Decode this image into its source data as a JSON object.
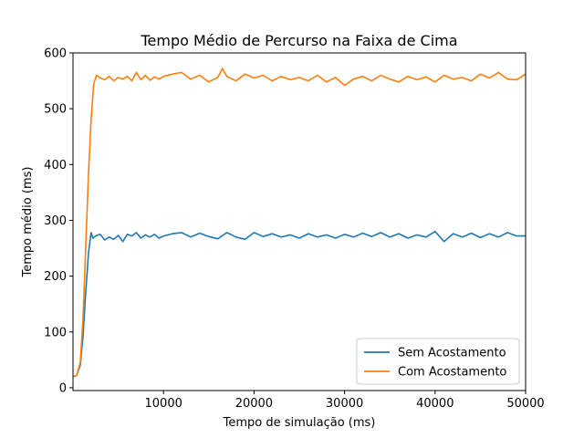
{
  "chart_data": {
    "type": "line",
    "title": "Tempo Médio de Percurso na Faixa de Cima",
    "xlabel": "Tempo de simulação (ms)",
    "ylabel": "Tempo médio (ms)",
    "xlim": [
      0,
      50000
    ],
    "ylim": [
      -5,
      600
    ],
    "xticks": [
      10000,
      20000,
      30000,
      40000,
      50000
    ],
    "yticks": [
      0,
      100,
      200,
      300,
      400,
      500,
      600
    ],
    "grid": false,
    "legend_position": "lower-right",
    "series": [
      {
        "name": "Sem Acostamento",
        "color": "#1f77b4",
        "x": [
          0,
          400,
          800,
          1100,
          1400,
          1700,
          2000,
          2200,
          2500,
          3000,
          3500,
          4000,
          4500,
          5000,
          5500,
          6000,
          6500,
          7000,
          7500,
          8000,
          8500,
          9000,
          9500,
          10000,
          11000,
          12000,
          13000,
          14000,
          15000,
          16000,
          17000,
          18000,
          19000,
          20000,
          21000,
          22000,
          23000,
          24000,
          25000,
          26000,
          27000,
          28000,
          29000,
          30000,
          31000,
          32000,
          33000,
          34000,
          35000,
          36000,
          37000,
          38000,
          39000,
          40000,
          41000,
          42000,
          43000,
          44000,
          45000,
          46000,
          47000,
          48000,
          49000,
          50000
        ],
        "values": [
          20,
          22,
          40,
          90,
          170,
          240,
          278,
          268,
          272,
          275,
          265,
          270,
          266,
          273,
          262,
          275,
          272,
          278,
          268,
          274,
          270,
          275,
          268,
          272,
          276,
          278,
          270,
          277,
          271,
          267,
          278,
          270,
          266,
          278,
          271,
          276,
          270,
          274,
          268,
          276,
          270,
          274,
          268,
          275,
          270,
          277,
          271,
          278,
          270,
          276,
          268,
          274,
          270,
          280,
          262,
          276,
          270,
          277,
          269,
          276,
          270,
          278,
          272,
          272
        ]
      },
      {
        "name": "Com Acostamento",
        "color": "#ff7f0e",
        "x": [
          0,
          400,
          800,
          1100,
          1400,
          1700,
          2000,
          2300,
          2600,
          3000,
          3500,
          4000,
          4500,
          5000,
          5500,
          6000,
          6500,
          7000,
          7500,
          8000,
          8500,
          9000,
          9500,
          10000,
          11000,
          12000,
          13000,
          14000,
          15000,
          16000,
          16500,
          17000,
          18000,
          19000,
          20000,
          21000,
          22000,
          23000,
          24000,
          25000,
          26000,
          27000,
          28000,
          29000,
          30000,
          31000,
          32000,
          33000,
          34000,
          35000,
          36000,
          37000,
          38000,
          39000,
          40000,
          41000,
          42000,
          43000,
          44000,
          45000,
          46000,
          47000,
          48000,
          49000,
          50000
        ],
        "values": [
          20,
          22,
          45,
          120,
          250,
          380,
          480,
          545,
          560,
          555,
          552,
          558,
          550,
          556,
          553,
          558,
          550,
          565,
          552,
          560,
          551,
          557,
          553,
          558,
          562,
          565,
          553,
          560,
          548,
          556,
          572,
          558,
          550,
          562,
          555,
          560,
          550,
          558,
          552,
          556,
          550,
          560,
          548,
          556,
          542,
          553,
          558,
          550,
          560,
          553,
          548,
          558,
          552,
          557,
          548,
          560,
          553,
          556,
          550,
          562,
          555,
          565,
          553,
          552,
          562
        ]
      }
    ]
  }
}
